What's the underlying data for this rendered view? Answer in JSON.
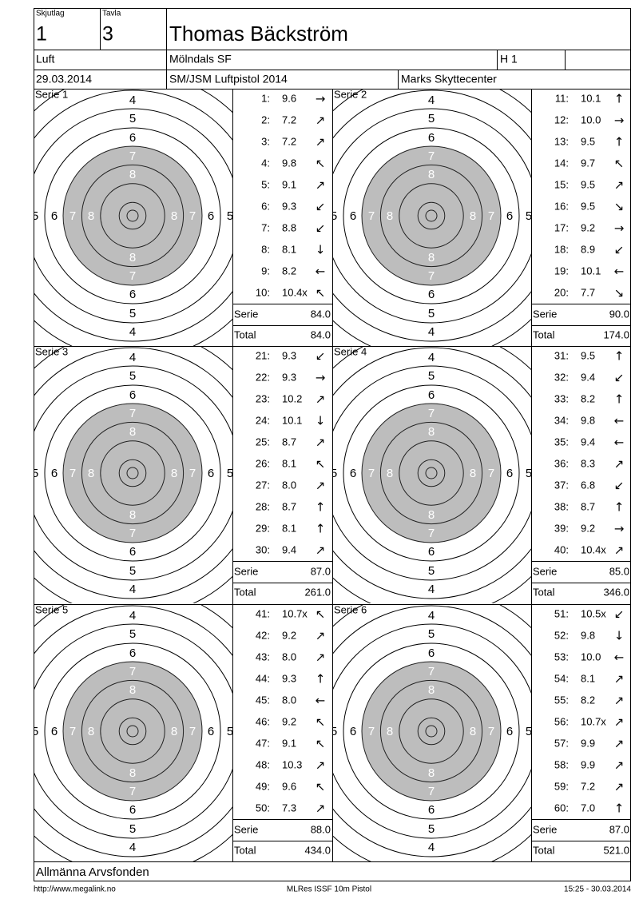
{
  "header": {
    "skjutlag_label": "Skjutlag",
    "skjutlag": "1",
    "tavla_label": "Tavla",
    "tavla": "3",
    "name": "Thomas Bäckström",
    "class": "Luft",
    "club": "Mölndals SF",
    "heat": "H 1",
    "date": "29.03.2014",
    "competition": "SM/JSM Luftpistol 2014",
    "venue": "Marks Skyttecenter"
  },
  "ring_labels": [
    "8",
    "7",
    "6",
    "5",
    "4"
  ],
  "series": [
    {
      "title": "Serie 1",
      "shots": [
        {
          "n": "1:",
          "score": "9.6",
          "dir": "→"
        },
        {
          "n": "2:",
          "score": "7.2",
          "dir": "↗"
        },
        {
          "n": "3:",
          "score": "7.2",
          "dir": "↗"
        },
        {
          "n": "4:",
          "score": "9.8",
          "dir": "↖"
        },
        {
          "n": "5:",
          "score": "9.1",
          "dir": "↗"
        },
        {
          "n": "6:",
          "score": "9.3",
          "dir": "↙"
        },
        {
          "n": "7:",
          "score": "8.8",
          "dir": "↙"
        },
        {
          "n": "8:",
          "score": "8.1",
          "dir": "↓"
        },
        {
          "n": "9:",
          "score": "8.2",
          "dir": "←"
        },
        {
          "n": "10:",
          "score": "10.4x",
          "dir": "↖"
        }
      ],
      "serie_label": "Serie",
      "serie": "84.0",
      "total_label": "Total",
      "total": "84.0"
    },
    {
      "title": "Serie 2",
      "shots": [
        {
          "n": "11:",
          "score": "10.1",
          "dir": "↑"
        },
        {
          "n": "12:",
          "score": "10.0",
          "dir": "→"
        },
        {
          "n": "13:",
          "score": "9.5",
          "dir": "↑"
        },
        {
          "n": "14:",
          "score": "9.7",
          "dir": "↖"
        },
        {
          "n": "15:",
          "score": "9.5",
          "dir": "↗"
        },
        {
          "n": "16:",
          "score": "9.5",
          "dir": "↘"
        },
        {
          "n": "17:",
          "score": "9.2",
          "dir": "→"
        },
        {
          "n": "18:",
          "score": "8.9",
          "dir": "↙"
        },
        {
          "n": "19:",
          "score": "10.1",
          "dir": "←"
        },
        {
          "n": "20:",
          "score": "7.7",
          "dir": "↘"
        }
      ],
      "serie_label": "Serie",
      "serie": "90.0",
      "total_label": "Total",
      "total": "174.0"
    },
    {
      "title": "Serie 3",
      "shots": [
        {
          "n": "21:",
          "score": "9.3",
          "dir": "↙"
        },
        {
          "n": "22:",
          "score": "9.3",
          "dir": "→"
        },
        {
          "n": "23:",
          "score": "10.2",
          "dir": "↗"
        },
        {
          "n": "24:",
          "score": "10.1",
          "dir": "↓"
        },
        {
          "n": "25:",
          "score": "8.7",
          "dir": "↗"
        },
        {
          "n": "26:",
          "score": "8.1",
          "dir": "↖"
        },
        {
          "n": "27:",
          "score": "8.0",
          "dir": "↗"
        },
        {
          "n": "28:",
          "score": "8.7",
          "dir": "↑"
        },
        {
          "n": "29:",
          "score": "8.1",
          "dir": "↑"
        },
        {
          "n": "30:",
          "score": "9.4",
          "dir": "↗"
        }
      ],
      "serie_label": "Serie",
      "serie": "87.0",
      "total_label": "Total",
      "total": "261.0"
    },
    {
      "title": "Serie 4",
      "shots": [
        {
          "n": "31:",
          "score": "9.5",
          "dir": "↑"
        },
        {
          "n": "32:",
          "score": "9.4",
          "dir": "↙"
        },
        {
          "n": "33:",
          "score": "8.2",
          "dir": "↑"
        },
        {
          "n": "34:",
          "score": "9.8",
          "dir": "←"
        },
        {
          "n": "35:",
          "score": "9.4",
          "dir": "←"
        },
        {
          "n": "36:",
          "score": "8.3",
          "dir": "↗"
        },
        {
          "n": "37:",
          "score": "6.8",
          "dir": "↙"
        },
        {
          "n": "38:",
          "score": "8.7",
          "dir": "↑"
        },
        {
          "n": "39:",
          "score": "9.2",
          "dir": "→"
        },
        {
          "n": "40:",
          "score": "10.4x",
          "dir": "↗"
        }
      ],
      "serie_label": "Serie",
      "serie": "85.0",
      "total_label": "Total",
      "total": "346.0"
    },
    {
      "title": "Serie 5",
      "shots": [
        {
          "n": "41:",
          "score": "10.7x",
          "dir": "↖"
        },
        {
          "n": "42:",
          "score": "9.2",
          "dir": "↗"
        },
        {
          "n": "43:",
          "score": "8.0",
          "dir": "↗"
        },
        {
          "n": "44:",
          "score": "9.3",
          "dir": "↑"
        },
        {
          "n": "45:",
          "score": "8.0",
          "dir": "←"
        },
        {
          "n": "46:",
          "score": "9.2",
          "dir": "↖"
        },
        {
          "n": "47:",
          "score": "9.1",
          "dir": "↖"
        },
        {
          "n": "48:",
          "score": "10.3",
          "dir": "↗"
        },
        {
          "n": "49:",
          "score": "9.6",
          "dir": "↖"
        },
        {
          "n": "50:",
          "score": "7.3",
          "dir": "↗"
        }
      ],
      "serie_label": "Serie",
      "serie": "88.0",
      "total_label": "Total",
      "total": "434.0"
    },
    {
      "title": "Serie 6",
      "shots": [
        {
          "n": "51:",
          "score": "10.5x",
          "dir": "↙"
        },
        {
          "n": "52:",
          "score": "9.8",
          "dir": "↓"
        },
        {
          "n": "53:",
          "score": "10.0",
          "dir": "←"
        },
        {
          "n": "54:",
          "score": "8.1",
          "dir": "↗"
        },
        {
          "n": "55:",
          "score": "8.2",
          "dir": "↗"
        },
        {
          "n": "56:",
          "score": "10.7x",
          "dir": "↗"
        },
        {
          "n": "57:",
          "score": "9.9",
          "dir": "↗"
        },
        {
          "n": "58:",
          "score": "9.9",
          "dir": "↗"
        },
        {
          "n": "59:",
          "score": "7.2",
          "dir": "↗"
        },
        {
          "n": "60:",
          "score": "7.0",
          "dir": "↑"
        }
      ],
      "serie_label": "Serie",
      "serie": "87.0",
      "total_label": "Total",
      "total": "521.0"
    }
  ],
  "footer": {
    "sponsor": "Allmänna Arvsfonden",
    "url": "http://www.megalink.no",
    "program": "MLRes ISSF 10m Pistol",
    "timestamp": "15:25 - 30.03.2014"
  }
}
